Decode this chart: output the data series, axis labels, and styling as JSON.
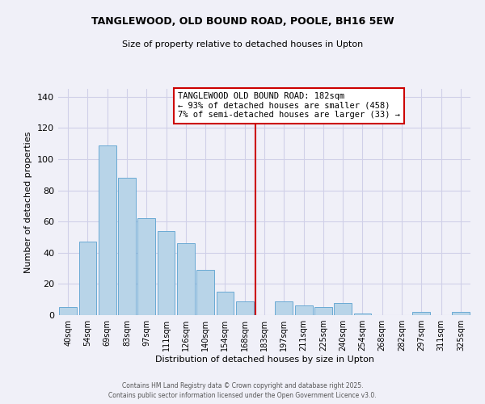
{
  "title1": "TANGLEWOOD, OLD BOUND ROAD, POOLE, BH16 5EW",
  "title2": "Size of property relative to detached houses in Upton",
  "xlabel": "Distribution of detached houses by size in Upton",
  "ylabel": "Number of detached properties",
  "categories": [
    "40sqm",
    "54sqm",
    "69sqm",
    "83sqm",
    "97sqm",
    "111sqm",
    "126sqm",
    "140sqm",
    "154sqm",
    "168sqm",
    "183sqm",
    "197sqm",
    "211sqm",
    "225sqm",
    "240sqm",
    "254sqm",
    "268sqm",
    "282sqm",
    "297sqm",
    "311sqm",
    "325sqm"
  ],
  "values": [
    5,
    47,
    109,
    88,
    62,
    54,
    46,
    29,
    15,
    9,
    0,
    9,
    6,
    5,
    8,
    1,
    0,
    0,
    2,
    0,
    2
  ],
  "bar_color": "#b8d4e8",
  "bar_edge_color": "#6aaad4",
  "vline_x_index": 10,
  "vline_color": "#cc0000",
  "ylim": [
    0,
    145
  ],
  "yticks": [
    0,
    20,
    40,
    60,
    80,
    100,
    120,
    140
  ],
  "annotation_title": "TANGLEWOOD OLD BOUND ROAD: 182sqm",
  "annotation_line1": "← 93% of detached houses are smaller (458)",
  "annotation_line2": "7% of semi-detached houses are larger (33) →",
  "footer1": "Contains HM Land Registry data © Crown copyright and database right 2025.",
  "footer2": "Contains public sector information licensed under the Open Government Licence v3.0.",
  "background_color": "#f0f0f8",
  "grid_color": "#d0d0e8"
}
